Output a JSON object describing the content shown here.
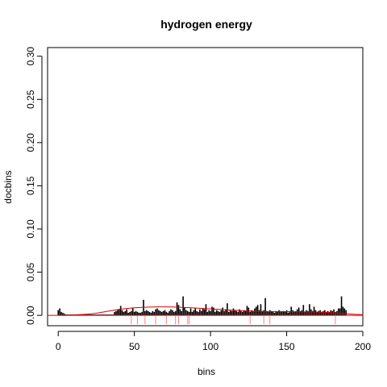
{
  "chart_data": {
    "type": "bar",
    "title": "hydrogen energy",
    "xlabel": "bins",
    "ylabel": "docbins",
    "xlim": [
      -7,
      200
    ],
    "ylim": [
      -0.012,
      0.31
    ],
    "x_ticks": [
      0,
      50,
      100,
      150,
      200
    ],
    "y_ticks": [
      0.0,
      0.05,
      0.1,
      0.15,
      0.2,
      0.25,
      0.3
    ],
    "x_tick_labels": [
      "0",
      "50",
      "100",
      "150",
      "200"
    ],
    "y_tick_labels": [
      "0.00",
      "0.05",
      "0.10",
      "0.15",
      "0.20",
      "0.25",
      "0.30"
    ],
    "bar_color": "#000000",
    "curve_color": "#dd0000",
    "rug_color": "#ff8080",
    "series": [
      {
        "values": [
          0.006,
          0.008,
          0.004,
          0.003,
          0.002,
          0.001,
          0.001,
          0.001,
          0.001,
          0.001,
          0.001,
          0.001,
          0.001,
          0.001,
          0.001,
          0.001,
          0.001,
          0.001,
          0.001,
          0.001,
          0.001,
          0.001,
          0.001,
          0.001,
          0.001,
          0.001,
          0.001,
          0.001,
          0.001,
          0.001,
          0.001,
          0.001,
          0.001,
          0.001,
          0.001,
          0.001,
          0.001,
          0.004,
          0.005,
          0.006,
          0.007,
          0.011,
          0.006,
          0.004,
          0.005,
          0.007,
          0.003,
          0.004,
          0.005,
          0.009,
          0.004,
          0.005,
          0.004,
          0.003,
          0.003,
          0.004,
          0.018,
          0.005,
          0.006,
          0.005,
          0.004,
          0.003,
          0.005,
          0.004,
          0.007,
          0.008,
          0.006,
          0.005,
          0.004,
          0.005,
          0.006,
          0.004,
          0.003,
          0.005,
          0.007,
          0.006,
          0.004,
          0.005,
          0.015,
          0.012,
          0.007,
          0.005,
          0.022,
          0.009,
          0.006,
          0.005,
          0.004,
          0.008,
          0.004,
          0.006,
          0.009,
          0.005,
          0.004,
          0.007,
          0.005,
          0.008,
          0.007,
          0.013,
          0.004,
          0.006,
          0.005,
          0.01,
          0.009,
          0.004,
          0.006,
          0.005,
          0.004,
          0.006,
          0.009,
          0.005,
          0.007,
          0.014,
          0.004,
          0.006,
          0.005,
          0.008,
          0.006,
          0.005,
          0.004,
          0.007,
          0.005,
          0.004,
          0.006,
          0.005,
          0.011,
          0.009,
          0.004,
          0.006,
          0.005,
          0.008,
          0.01,
          0.012,
          0.006,
          0.013,
          0.005,
          0.006,
          0.02,
          0.005,
          0.004,
          0.006,
          0.005,
          0.004,
          0.003,
          0.005,
          0.004,
          0.006,
          0.005,
          0.004,
          0.005,
          0.004,
          0.006,
          0.003,
          0.005,
          0.01,
          0.006,
          0.004,
          0.005,
          0.007,
          0.009,
          0.005,
          0.006,
          0.012,
          0.004,
          0.006,
          0.005,
          0.013,
          0.007,
          0.005,
          0.01,
          0.006,
          0.004,
          0.005,
          0.006,
          0.004,
          0.005,
          0.006,
          0.004,
          0.005,
          0.004,
          0.006,
          0.005,
          0.007,
          0.004,
          0.005,
          0.008,
          0.008,
          0.022,
          0.01,
          0.008,
          0.006
        ]
      }
    ],
    "density_curve": {
      "x": [
        0,
        5,
        10,
        15,
        20,
        25,
        30,
        35,
        40,
        45,
        50,
        55,
        60,
        65,
        70,
        75,
        80,
        85,
        90,
        95,
        100,
        105,
        110,
        115,
        120,
        125,
        130,
        135,
        140,
        145,
        150,
        155,
        160,
        165,
        170,
        175,
        180,
        185,
        190,
        195,
        200
      ],
      "y": [
        0.0,
        0.0,
        0.0005,
        0.001,
        0.0015,
        0.0025,
        0.004,
        0.0055,
        0.007,
        0.008,
        0.0088,
        0.0093,
        0.0096,
        0.0098,
        0.0098,
        0.0097,
        0.0094,
        0.009,
        0.0085,
        0.008,
        0.0075,
        0.007,
        0.0065,
        0.006,
        0.0055,
        0.005,
        0.0047,
        0.0045,
        0.0044,
        0.0043,
        0.0043,
        0.0042,
        0.0041,
        0.004,
        0.0038,
        0.0035,
        0.003,
        0.0024,
        0.0018,
        0.0012,
        0.0008
      ]
    },
    "rug_x": [
      48,
      52,
      57,
      64,
      71,
      77,
      79,
      85,
      86,
      126,
      135,
      139,
      182
    ]
  }
}
